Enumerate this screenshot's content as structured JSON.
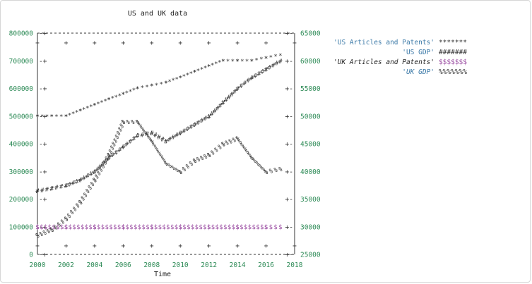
{
  "chart_data": {
    "type": "line",
    "title": "US and UK data",
    "xlabel": "Time",
    "ylabel_left": "",
    "ylabel_right": "",
    "x_ticks": [
      "2000",
      "2002",
      "2004",
      "2006",
      "2008",
      "2010",
      "2012",
      "2014",
      "2016",
      "2018"
    ],
    "y_left_ticks": [
      "0",
      "100000",
      "200000",
      "300000",
      "400000",
      "500000",
      "600000",
      "700000",
      "800000"
    ],
    "y_right_ticks": [
      "25000",
      "30000",
      "35000",
      "40000",
      "45000",
      "50000",
      "55000",
      "60000",
      "65000"
    ],
    "xlim": [
      2000,
      2018
    ],
    "ylim_left": [
      0,
      800000
    ],
    "ylim_right": [
      25000,
      65000
    ],
    "legend_position": "top-right",
    "grid": false,
    "series": [
      {
        "name": "'US Articles and Patents'",
        "marker": "*******",
        "color": "#333333",
        "axis": "left",
        "x": [
          2000,
          2001,
          2002,
          2003,
          2004,
          2005,
          2006,
          2007,
          2008,
          2009,
          2010,
          2011,
          2012,
          2013,
          2014,
          2015,
          2016,
          2017
        ],
        "values": [
          500000,
          500000,
          500000,
          520000,
          540000,
          560000,
          580000,
          600000,
          610000,
          620000,
          640000,
          660000,
          680000,
          700000,
          700000,
          700000,
          710000,
          720000
        ]
      },
      {
        "name": "'US GDP'",
        "marker": "#######",
        "color": "#333333",
        "axis": "right",
        "x": [
          2000,
          2001,
          2002,
          2003,
          2004,
          2005,
          2006,
          2007,
          2008,
          2009,
          2010,
          2011,
          2012,
          2013,
          2014,
          2015,
          2016,
          2017
        ],
        "values": [
          36500,
          37000,
          37500,
          38500,
          40000,
          42500,
          44500,
          46500,
          47000,
          45500,
          47000,
          48500,
          50000,
          52500,
          55000,
          57000,
          58500,
          60000
        ]
      },
      {
        "name": "'UK Articles and Patents'",
        "marker": "$$$$$$$",
        "color": "#9b4ea3",
        "axis": "left",
        "x": [
          2000,
          2002,
          2004,
          2006,
          2008,
          2010,
          2012,
          2014,
          2016,
          2017
        ],
        "values": [
          101000,
          101000,
          101000,
          101000,
          101000,
          101000,
          101000,
          101000,
          101000,
          101000
        ]
      },
      {
        "name": "'UK GDP'",
        "marker": "%%%%%%%",
        "color": "#333333",
        "axis": "right",
        "x": [
          2000,
          2001,
          2002,
          2003,
          2004,
          2005,
          2006,
          2007,
          2008,
          2009,
          2010,
          2011,
          2012,
          2013,
          2014,
          2015,
          2016,
          2017
        ],
        "values": [
          28500,
          29500,
          31500,
          34500,
          38500,
          43000,
          49000,
          49000,
          45500,
          41500,
          40000,
          42000,
          43000,
          45000,
          46000,
          42500,
          40000,
          40500
        ]
      }
    ]
  }
}
